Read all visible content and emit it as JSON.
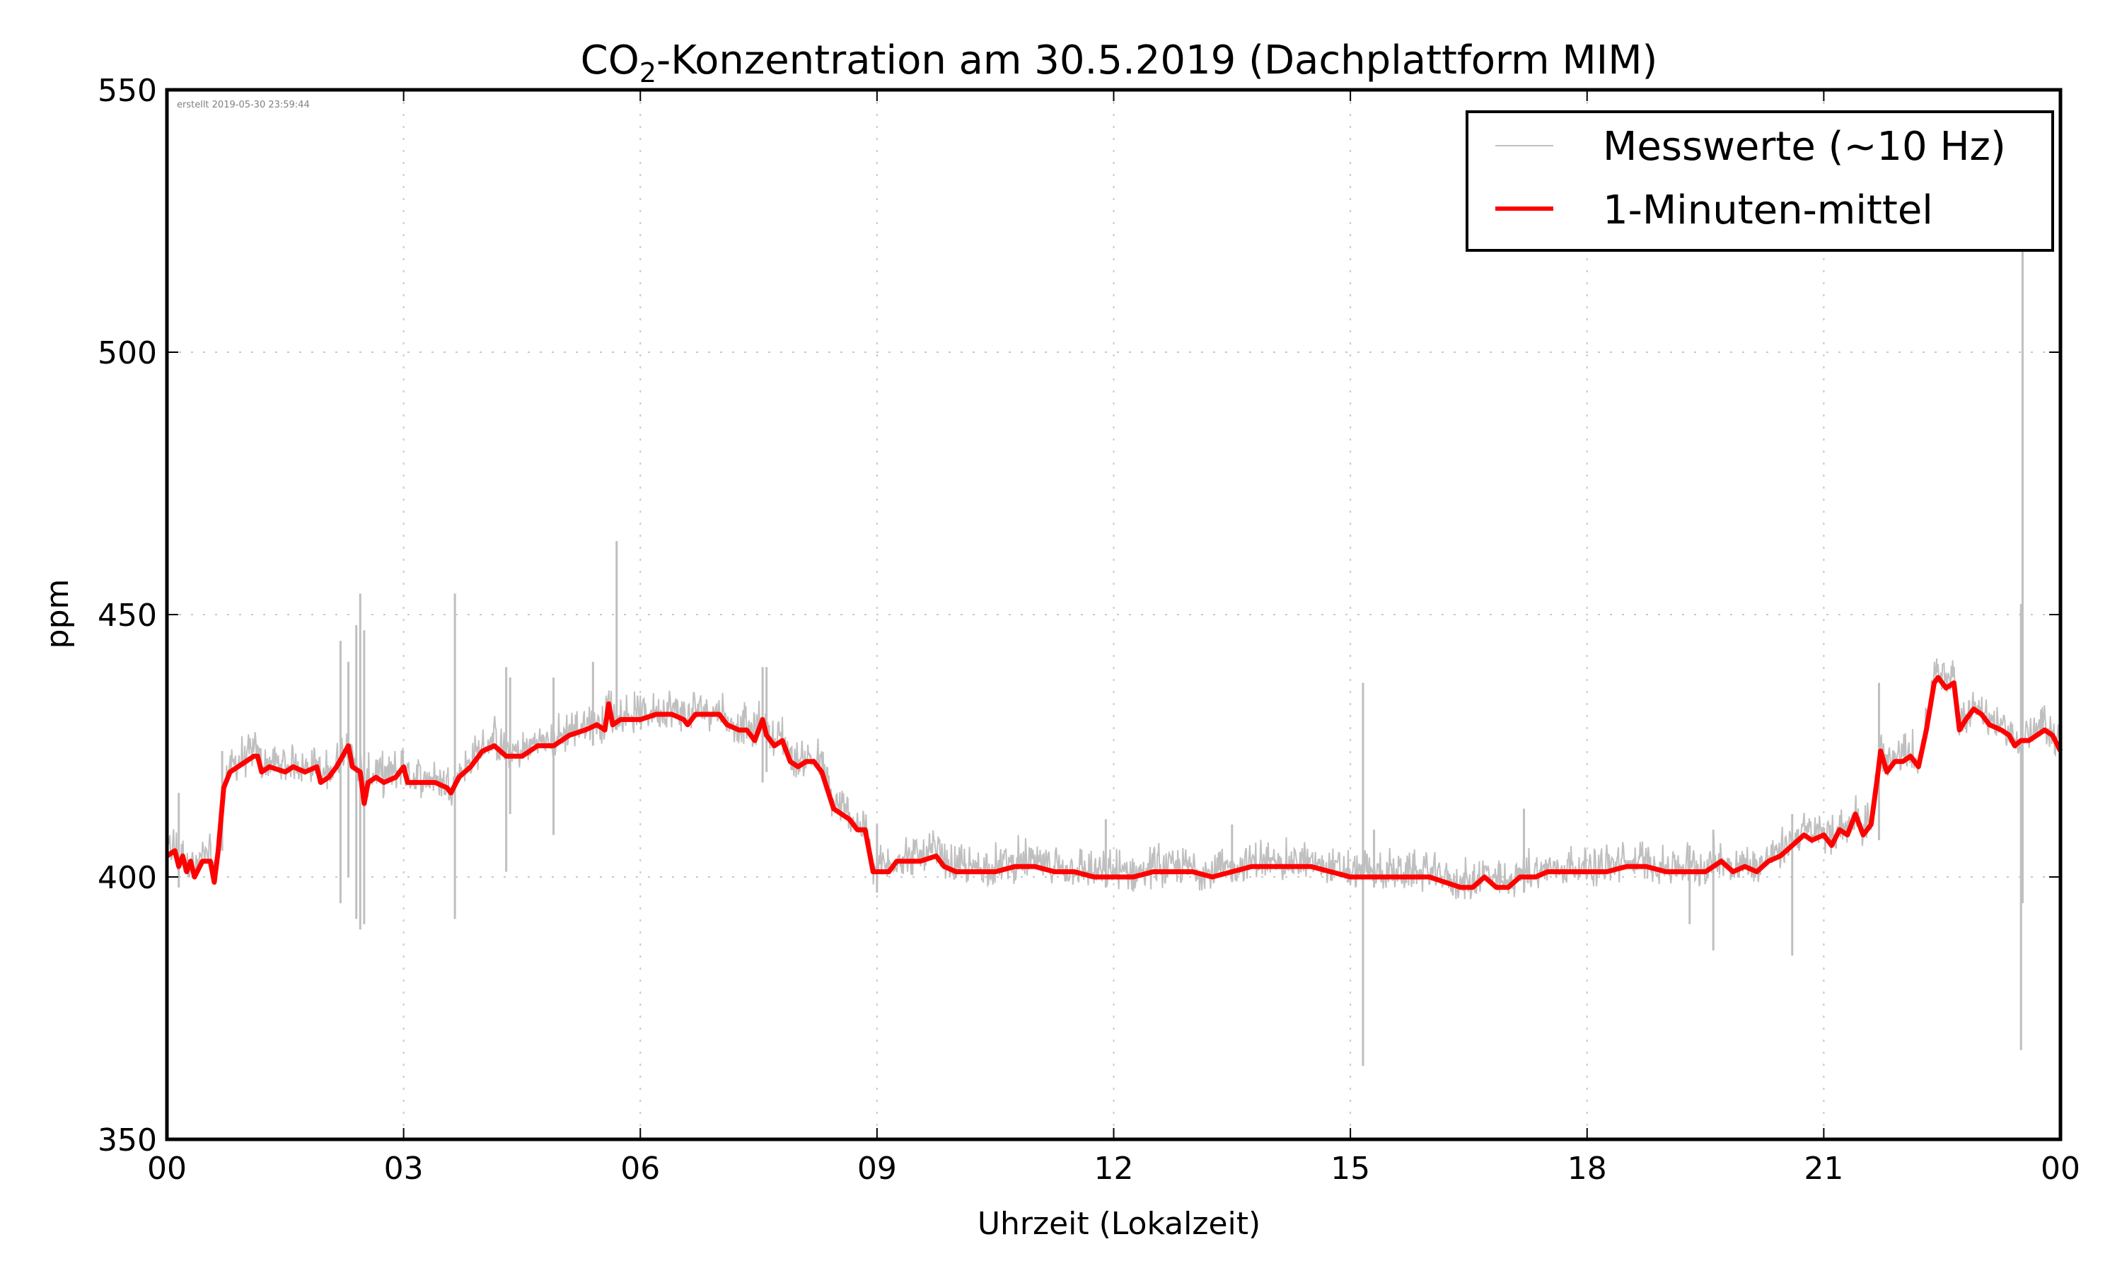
{
  "chart_data": {
    "type": "line",
    "title_prefix": "CO",
    "title_subscript": "2",
    "title_suffix": "-Konzentration am 30.5.2019 (Dachplattform MIM)",
    "xlabel": "Uhrzeit (Lokalzeit)",
    "ylabel": "ppm",
    "created_stamp": "erstellt 2019-05-30 23:59:44",
    "xlim": [
      0,
      24
    ],
    "ylim": [
      350,
      550
    ],
    "x_ticks": [
      0,
      3,
      6,
      9,
      12,
      15,
      18,
      21,
      24
    ],
    "x_tick_labels": [
      "00",
      "03",
      "06",
      "09",
      "12",
      "15",
      "18",
      "21",
      "00"
    ],
    "y_ticks": [
      350,
      400,
      450,
      500,
      550
    ],
    "y_tick_labels": [
      "350",
      "400",
      "450",
      "500",
      "550"
    ],
    "grid": true,
    "legend_placement": "top-right",
    "series": [
      {
        "name": "Messwerte (~10 Hz)",
        "color": "#bfbfbf",
        "kind": "raw",
        "noise_amplitude_ppm": 3,
        "spikes": [
          {
            "x": 0.15,
            "low": 398,
            "high": 416
          },
          {
            "x": 0.7,
            "low": 405,
            "high": 424
          },
          {
            "x": 2.2,
            "low": 395,
            "high": 445
          },
          {
            "x": 2.3,
            "low": 400,
            "high": 441
          },
          {
            "x": 2.4,
            "low": 392,
            "high": 448
          },
          {
            "x": 2.45,
            "low": 390,
            "high": 454
          },
          {
            "x": 2.5,
            "low": 391,
            "high": 447
          },
          {
            "x": 3.65,
            "low": 392,
            "high": 454
          },
          {
            "x": 4.3,
            "low": 401,
            "high": 440
          },
          {
            "x": 4.35,
            "low": 412,
            "high": 438
          },
          {
            "x": 4.9,
            "low": 408,
            "high": 438
          },
          {
            "x": 5.4,
            "low": 425,
            "high": 441
          },
          {
            "x": 5.7,
            "low": 428,
            "high": 464
          },
          {
            "x": 7.55,
            "low": 418,
            "high": 440
          },
          {
            "x": 7.6,
            "low": 420,
            "high": 440
          },
          {
            "x": 9.0,
            "low": 397,
            "high": 410
          },
          {
            "x": 11.9,
            "low": 398,
            "high": 411
          },
          {
            "x": 13.5,
            "low": 399,
            "high": 410
          },
          {
            "x": 15.16,
            "low": 364,
            "high": 437
          },
          {
            "x": 15.3,
            "low": 398,
            "high": 409
          },
          {
            "x": 17.2,
            "low": 397,
            "high": 413
          },
          {
            "x": 19.3,
            "low": 391,
            "high": 406
          },
          {
            "x": 19.6,
            "low": 386,
            "high": 409
          },
          {
            "x": 20.6,
            "low": 385,
            "high": 412
          },
          {
            "x": 21.7,
            "low": 407,
            "high": 437
          },
          {
            "x": 23.5,
            "low": 367,
            "high": 452
          },
          {
            "x": 23.52,
            "low": 395,
            "high": 546
          }
        ]
      },
      {
        "name": "1-Minuten-mittel",
        "color": "#ff0000",
        "kind": "mean",
        "points": [
          [
            0.0,
            404
          ],
          [
            0.1,
            405
          ],
          [
            0.15,
            402
          ],
          [
            0.2,
            404
          ],
          [
            0.25,
            401
          ],
          [
            0.3,
            403
          ],
          [
            0.35,
            400
          ],
          [
            0.45,
            403
          ],
          [
            0.55,
            403
          ],
          [
            0.6,
            399
          ],
          [
            0.65,
            405
          ],
          [
            0.72,
            417
          ],
          [
            0.8,
            420
          ],
          [
            0.9,
            421
          ],
          [
            1.0,
            422
          ],
          [
            1.1,
            423
          ],
          [
            1.15,
            423
          ],
          [
            1.2,
            420
          ],
          [
            1.3,
            421
          ],
          [
            1.5,
            420
          ],
          [
            1.6,
            421
          ],
          [
            1.75,
            420
          ],
          [
            1.9,
            421
          ],
          [
            1.95,
            418
          ],
          [
            2.05,
            419
          ],
          [
            2.15,
            421
          ],
          [
            2.3,
            425
          ],
          [
            2.35,
            421
          ],
          [
            2.45,
            420
          ],
          [
            2.5,
            414
          ],
          [
            2.55,
            418
          ],
          [
            2.65,
            419
          ],
          [
            2.75,
            418
          ],
          [
            2.9,
            419
          ],
          [
            3.0,
            421
          ],
          [
            3.05,
            418
          ],
          [
            3.2,
            418
          ],
          [
            3.4,
            418
          ],
          [
            3.55,
            417
          ],
          [
            3.6,
            416
          ],
          [
            3.7,
            419
          ],
          [
            3.85,
            421
          ],
          [
            4.0,
            424
          ],
          [
            4.15,
            425
          ],
          [
            4.3,
            423
          ],
          [
            4.5,
            423
          ],
          [
            4.7,
            425
          ],
          [
            4.9,
            425
          ],
          [
            5.1,
            427
          ],
          [
            5.3,
            428
          ],
          [
            5.45,
            429
          ],
          [
            5.55,
            428
          ],
          [
            5.6,
            433
          ],
          [
            5.65,
            429
          ],
          [
            5.75,
            430
          ],
          [
            6.0,
            430
          ],
          [
            6.2,
            431
          ],
          [
            6.4,
            431
          ],
          [
            6.55,
            430
          ],
          [
            6.6,
            429
          ],
          [
            6.7,
            431
          ],
          [
            6.9,
            431
          ],
          [
            7.0,
            431
          ],
          [
            7.1,
            429
          ],
          [
            7.25,
            428
          ],
          [
            7.35,
            428
          ],
          [
            7.45,
            426
          ],
          [
            7.55,
            430
          ],
          [
            7.6,
            427
          ],
          [
            7.7,
            425
          ],
          [
            7.8,
            426
          ],
          [
            7.9,
            422
          ],
          [
            8.0,
            421
          ],
          [
            8.1,
            422
          ],
          [
            8.2,
            422
          ],
          [
            8.3,
            420
          ],
          [
            8.45,
            413
          ],
          [
            8.55,
            412
          ],
          [
            8.65,
            411
          ],
          [
            8.75,
            409
          ],
          [
            8.85,
            409
          ],
          [
            8.95,
            401
          ],
          [
            9.05,
            401
          ],
          [
            9.15,
            401
          ],
          [
            9.25,
            403
          ],
          [
            9.4,
            403
          ],
          [
            9.55,
            403
          ],
          [
            9.75,
            404
          ],
          [
            9.85,
            402
          ],
          [
            10.0,
            401
          ],
          [
            10.25,
            401
          ],
          [
            10.5,
            401
          ],
          [
            10.75,
            402
          ],
          [
            11.0,
            402
          ],
          [
            11.25,
            401
          ],
          [
            11.5,
            401
          ],
          [
            11.75,
            400
          ],
          [
            12.0,
            400
          ],
          [
            12.25,
            400
          ],
          [
            12.5,
            401
          ],
          [
            12.75,
            401
          ],
          [
            13.0,
            401
          ],
          [
            13.25,
            400
          ],
          [
            13.5,
            401
          ],
          [
            13.75,
            402
          ],
          [
            14.0,
            402
          ],
          [
            14.25,
            402
          ],
          [
            14.5,
            402
          ],
          [
            14.75,
            401
          ],
          [
            15.0,
            400
          ],
          [
            15.25,
            400
          ],
          [
            15.5,
            400
          ],
          [
            15.75,
            400
          ],
          [
            16.0,
            400
          ],
          [
            16.2,
            399
          ],
          [
            16.4,
            398
          ],
          [
            16.55,
            398
          ],
          [
            16.7,
            400
          ],
          [
            16.85,
            398
          ],
          [
            17.0,
            398
          ],
          [
            17.15,
            400
          ],
          [
            17.35,
            400
          ],
          [
            17.5,
            401
          ],
          [
            17.75,
            401
          ],
          [
            18.0,
            401
          ],
          [
            18.25,
            401
          ],
          [
            18.5,
            402
          ],
          [
            18.75,
            402
          ],
          [
            19.0,
            401
          ],
          [
            19.25,
            401
          ],
          [
            19.5,
            401
          ],
          [
            19.7,
            403
          ],
          [
            19.85,
            401
          ],
          [
            20.0,
            402
          ],
          [
            20.15,
            401
          ],
          [
            20.3,
            403
          ],
          [
            20.45,
            404
          ],
          [
            20.6,
            406
          ],
          [
            20.75,
            408
          ],
          [
            20.85,
            407
          ],
          [
            21.0,
            408
          ],
          [
            21.1,
            406
          ],
          [
            21.2,
            409
          ],
          [
            21.3,
            408
          ],
          [
            21.4,
            412
          ],
          [
            21.5,
            408
          ],
          [
            21.6,
            410
          ],
          [
            21.68,
            419
          ],
          [
            21.72,
            424
          ],
          [
            21.8,
            420
          ],
          [
            21.9,
            422
          ],
          [
            22.0,
            422
          ],
          [
            22.1,
            423
          ],
          [
            22.2,
            421
          ],
          [
            22.3,
            428
          ],
          [
            22.4,
            437
          ],
          [
            22.45,
            438
          ],
          [
            22.55,
            436
          ],
          [
            22.65,
            437
          ],
          [
            22.72,
            428
          ],
          [
            22.8,
            430
          ],
          [
            22.9,
            432
          ],
          [
            23.0,
            431
          ],
          [
            23.1,
            429
          ],
          [
            23.25,
            428
          ],
          [
            23.35,
            427
          ],
          [
            23.42,
            425
          ],
          [
            23.5,
            426
          ],
          [
            23.6,
            426
          ],
          [
            23.7,
            427
          ],
          [
            23.8,
            428
          ],
          [
            23.9,
            427
          ],
          [
            24.0,
            424
          ]
        ]
      }
    ]
  }
}
